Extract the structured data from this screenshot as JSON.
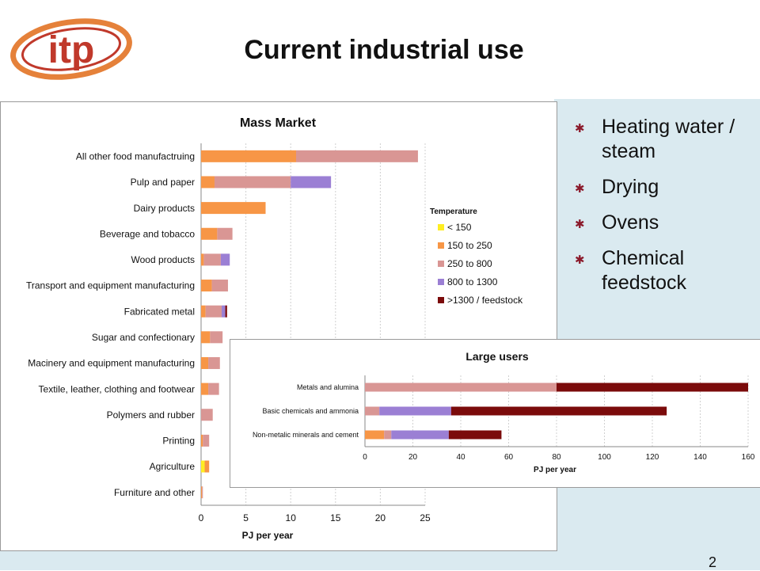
{
  "slide": {
    "title": "Current industrial use",
    "page_number": "2",
    "logo_text": "itp",
    "bullets": [
      "Heating water / steam",
      "Drying",
      "Ovens",
      "Chemical feedstock"
    ]
  },
  "colors": {
    "lt150": "#ffee22",
    "r150_250": "#f79646",
    "r250_800": "#d99694",
    "r800_1300": "#9b7fd4",
    "gt1300": "#7b0b0b",
    "bullet_accent": "#8b1a2b",
    "logo_red": "#c0392b",
    "logo_ring": "#e5813a"
  },
  "chart_data": [
    {
      "type": "bar",
      "orientation": "horizontal",
      "stacked": true,
      "title": "Mass Market",
      "xlabel": "PJ per year",
      "xlim": [
        0,
        25
      ],
      "xticks": [
        0,
        5,
        10,
        15,
        20,
        25
      ],
      "legend_title": "Temperature",
      "legend_position": "right",
      "categories": [
        "All other food manufactruing",
        "Pulp and paper",
        "Dairy products",
        "Beverage and tobacco",
        "Wood products",
        "Transport and equipment manufacturing",
        "Fabricated metal",
        "Sugar and confectionary",
        "Macinery and equipment manufacturing",
        "Textile, leather, clothing and footwear",
        "Polymers and rubber",
        "Printing",
        "Agriculture",
        "Furniture and other"
      ],
      "series": [
        {
          "name": "< 150",
          "color_key": "lt150",
          "values": [
            0,
            0,
            0,
            0,
            0,
            0,
            0,
            0,
            0,
            0,
            0,
            0,
            0.4,
            0
          ]
        },
        {
          "name": "150 to 250",
          "color_key": "r150_250",
          "values": [
            10.6,
            1.5,
            7.2,
            1.8,
            0.3,
            1.2,
            0.5,
            1.0,
            0.8,
            0.8,
            0,
            0.2,
            0.5,
            0.1
          ]
        },
        {
          "name": "250 to 800",
          "color_key": "r250_800",
          "values": [
            13.6,
            8.5,
            0,
            1.7,
            1.9,
            1.8,
            1.8,
            1.4,
            1.3,
            1.2,
            1.3,
            0.7,
            0,
            0.1
          ]
        },
        {
          "name": "800 to 1300",
          "color_key": "r800_1300",
          "values": [
            0,
            4.5,
            0,
            0,
            1.0,
            0,
            0.4,
            0,
            0,
            0,
            0,
            0,
            0,
            0
          ]
        },
        {
          "name": ">1300 / feedstock",
          "color_key": "gt1300",
          "values": [
            0,
            0,
            0,
            0,
            0,
            0,
            0.2,
            0,
            0,
            0,
            0,
            0,
            0,
            0
          ]
        }
      ]
    },
    {
      "type": "bar",
      "orientation": "horizontal",
      "stacked": true,
      "title": "Large users",
      "xlabel": "PJ per year",
      "xlim": [
        0,
        160
      ],
      "xticks": [
        0,
        20,
        40,
        60,
        80,
        100,
        120,
        140,
        160
      ],
      "categories": [
        "Metals and alumina",
        "Basic chemicals and ammonia",
        "Non-metalic minerals and cement"
      ],
      "series": [
        {
          "name": "150 to 250",
          "color_key": "r150_250",
          "values": [
            0,
            0,
            8
          ]
        },
        {
          "name": "250 to 800",
          "color_key": "r250_800",
          "values": [
            80,
            6,
            3
          ]
        },
        {
          "name": "800 to 1300",
          "color_key": "r800_1300",
          "values": [
            0,
            30,
            24
          ]
        },
        {
          "name": ">1300 / feedstock",
          "color_key": "gt1300",
          "values": [
            80,
            90,
            22
          ]
        }
      ]
    }
  ]
}
